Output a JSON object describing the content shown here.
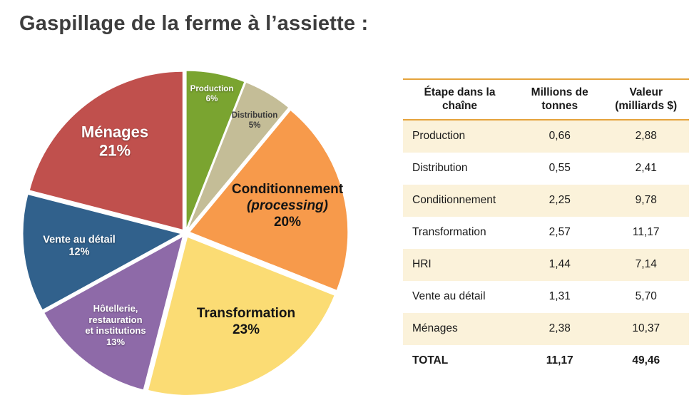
{
  "page": {
    "title": "Gaspillage de la ferme à l’assiette :"
  },
  "chart_data": [
    {
      "type": "pie",
      "title": "Gaspillage de la ferme à l’assiette :",
      "unit": "%",
      "slices": [
        {
          "label": "Production",
          "pct": 6,
          "color": "#7aa430",
          "text_color": "#ffffff",
          "label_lines": [
            {
              "text": "Production"
            },
            {
              "text": "6%"
            }
          ]
        },
        {
          "label": "Distribution",
          "pct": 5,
          "color": "#c4bd97",
          "text_color": "#3a3a3a",
          "label_lines": [
            {
              "text": "Distribution"
            },
            {
              "text": "5%"
            }
          ]
        },
        {
          "label": "Conditionnement (processing)",
          "pct": 20,
          "color": "#f79a4b",
          "text_color": "#141414",
          "label_lines": [
            {
              "text": "Conditionnement"
            },
            {
              "text": "(processing)",
              "italic": true
            },
            {
              "text": "20%"
            }
          ]
        },
        {
          "label": "Transformation",
          "pct": 23,
          "color": "#fbdc74",
          "text_color": "#141414",
          "label_lines": [
            {
              "text": "Transformation"
            },
            {
              "text": "23%"
            }
          ]
        },
        {
          "label": "Hôtellerie, restauration et institutions",
          "pct": 13,
          "color": "#8e6aa8",
          "text_color": "#ffffff",
          "label_lines": [
            {
              "text": "Hôtellerie,"
            },
            {
              "text": "restauration"
            },
            {
              "text": "et institutions"
            },
            {
              "text": "13%"
            }
          ]
        },
        {
          "label": "Vente au détail",
          "pct": 12,
          "color": "#31618c",
          "text_color": "#ffffff",
          "label_lines": [
            {
              "text": "Vente au détail"
            },
            {
              "text": "12%"
            }
          ]
        },
        {
          "label": "Ménages",
          "pct": 21,
          "color": "#c0504d",
          "text_color": "#ffffff",
          "label_lines": [
            {
              "text": "Ménages"
            },
            {
              "text": "21%"
            }
          ]
        }
      ]
    },
    {
      "type": "table",
      "headers": [
        "Étape dans la chaîne",
        "Millions de tonnes",
        "Valeur (milliards $)"
      ],
      "rows": [
        [
          "Production",
          "0,66",
          "2,88"
        ],
        [
          "Distribution",
          "0,55",
          "2,41"
        ],
        [
          "Conditionnement",
          "2,25",
          "9,78"
        ],
        [
          "Transformation",
          "2,57",
          "11,17"
        ],
        [
          "HRI",
          "1,44",
          "7,14"
        ],
        [
          "Vente au détail",
          "1,31",
          "5,70"
        ],
        [
          "Ménages",
          "2,38",
          "10,37"
        ],
        [
          "TOTAL",
          "11,17",
          "49,46"
        ]
      ]
    }
  ]
}
